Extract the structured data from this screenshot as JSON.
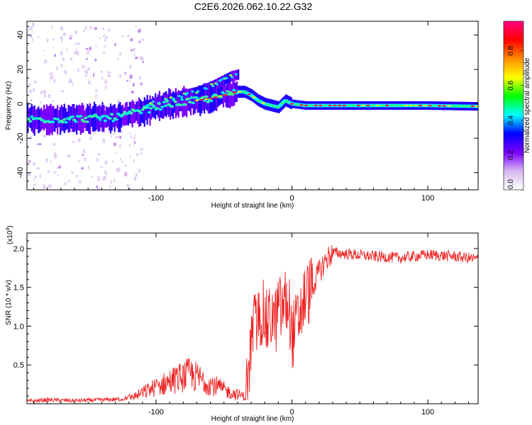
{
  "figure_title": "C2E6.2026.062.10.22.G32",
  "chart_data": [
    {
      "type": "heatmap",
      "name": "spectrogram",
      "xlabel": "Height of straight line (km)",
      "ylabel": "Frequency (Hz)",
      "xlim": [
        -195,
        137
      ],
      "ylim": [
        -50,
        48
      ],
      "x_ticks": [
        -100,
        0,
        100
      ],
      "y_ticks": [
        -40,
        -20,
        0,
        20,
        40
      ],
      "ridge": {
        "x": [
          -195,
          -170,
          -150,
          -130,
          -120,
          -110,
          -100,
          -90,
          -80,
          -70,
          -60,
          -55,
          -50,
          -45,
          -40,
          -35,
          -30,
          -25,
          -20,
          -15,
          -10,
          -5,
          0,
          10,
          30,
          60,
          100,
          137
        ],
        "y": [
          -9,
          -9,
          -8.5,
          -8,
          -6,
          -4,
          -2,
          0,
          1,
          2,
          3,
          4,
          5,
          6,
          7,
          7,
          5,
          2,
          0,
          -1,
          -2,
          2,
          0,
          -1,
          -1,
          -1,
          -1,
          -1.5
        ]
      },
      "upper_branch": {
        "x": [
          -110,
          -100,
          -90,
          -80,
          -70,
          -60,
          -55,
          -50,
          -45,
          -40
        ],
        "y": [
          -2,
          1,
          3,
          5,
          7,
          10,
          12,
          14,
          16,
          17
        ]
      },
      "colorbar": {
        "label": "Normalized spectral amplitude",
        "min": 0.0,
        "max": 0.97,
        "ticks": [
          0.0,
          0.2,
          0.4,
          0.6,
          0.8
        ],
        "tick_labels": [
          "0.0",
          "0.2",
          "0.4",
          "0.6",
          "0.8"
        ],
        "colors": [
          "#ffffff",
          "#d8b8f0",
          "#7a00ff",
          "#0000ff",
          "#00ffff",
          "#00ff00",
          "#ffff00",
          "#ff8c00",
          "#ff0000",
          "#ff0080"
        ]
      }
    },
    {
      "type": "line",
      "name": "snr",
      "xlabel": "Height of straight line (km)",
      "ylabel": "SNR (10 * v/v)",
      "y_multiplier": "(x10^4)",
      "xlim": [
        -195,
        137
      ],
      "ylim": [
        0.0,
        2.2
      ],
      "x_ticks": [
        -100,
        0,
        100
      ],
      "y_ticks": [
        0.5,
        1.0,
        1.5,
        2.0
      ],
      "y_tick_labels": [
        "0.5",
        "1.0",
        "1.5",
        "2.0"
      ],
      "color": "#ee2222",
      "series": [
        {
          "name": "SNR",
          "x": [
            -195,
            -180,
            -160,
            -140,
            -125,
            -115,
            -105,
            -95,
            -85,
            -75,
            -65,
            -55,
            -50,
            -45,
            -40,
            -35,
            -32,
            -30,
            -28,
            -25,
            -22,
            -20,
            -18,
            -15,
            -12,
            -10,
            -8,
            -5,
            -2,
            0,
            5,
            10,
            15,
            20,
            25,
            30,
            40,
            60,
            80,
            100,
            120,
            137
          ],
          "y": [
            0.03,
            0.05,
            0.04,
            0.05,
            0.06,
            0.1,
            0.18,
            0.25,
            0.32,
            0.38,
            0.3,
            0.22,
            0.18,
            0.14,
            0.12,
            0.1,
            0.3,
            0.8,
            1.0,
            1.05,
            1.2,
            1.1,
            1.0,
            1.15,
            1.05,
            1.25,
            1.2,
            1.3,
            1.25,
            0.85,
            1.1,
            1.4,
            1.5,
            1.7,
            1.85,
            1.95,
            1.93,
            1.9,
            1.88,
            1.92,
            1.9,
            1.86
          ]
        }
      ]
    }
  ]
}
